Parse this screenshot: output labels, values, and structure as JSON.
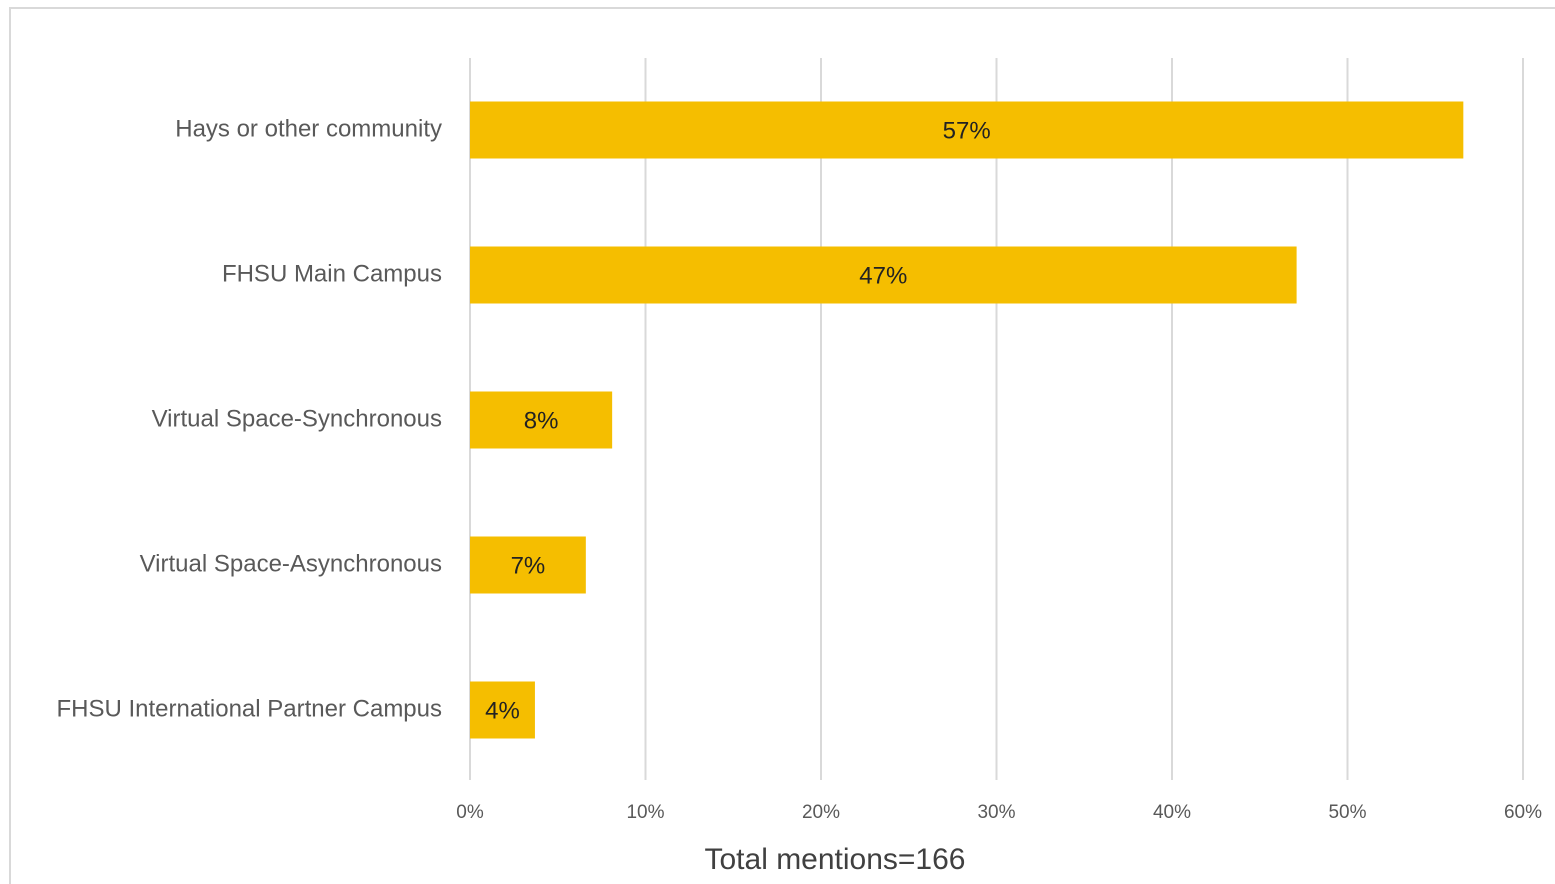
{
  "chart_data": {
    "type": "hbar",
    "categories": [
      "Hays or other community",
      "FHSU Main Campus",
      "Virtual Space-Synchronous",
      "Virtual Space-Asynchronous",
      "FHSU International Partner Campus"
    ],
    "values": [
      56.6,
      47.1,
      8.1,
      6.6,
      3.7
    ],
    "value_labels": [
      "57%",
      "47%",
      "8%",
      "7%",
      "4%"
    ],
    "color": "#f5be00",
    "xlabel": "Total mentions=166",
    "xlim": [
      0,
      60
    ],
    "xticks": [
      {
        "value": 0,
        "label": "0%"
      },
      {
        "value": 10,
        "label": "10%"
      },
      {
        "value": 20,
        "label": "20%"
      },
      {
        "value": 30,
        "label": "30%"
      },
      {
        "value": 40,
        "label": "40%"
      },
      {
        "value": 50,
        "label": "50%"
      },
      {
        "value": 60,
        "label": "60%"
      }
    ],
    "grid": true
  }
}
